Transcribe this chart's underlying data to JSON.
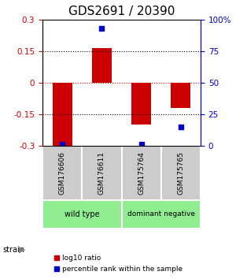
{
  "title": "GDS2691 / 20390",
  "samples": [
    "GSM176606",
    "GSM176611",
    "GSM175764",
    "GSM175765"
  ],
  "log10_ratio": [
    -0.3,
    0.165,
    -0.2,
    -0.12
  ],
  "percentile_rank": [
    1,
    93,
    1,
    15
  ],
  "groups": [
    {
      "name": "wild type",
      "samples": [
        0,
        1
      ],
      "color": "#90EE90"
    },
    {
      "name": "dominant negative",
      "samples": [
        2,
        3
      ],
      "color": "#90EE90"
    }
  ],
  "bar_color": "#cc0000",
  "dot_color": "#0000cc",
  "ylim_left": [
    -0.3,
    0.3
  ],
  "ylim_right": [
    0,
    100
  ],
  "yticks_left": [
    -0.3,
    -0.15,
    0,
    0.15,
    0.3
  ],
  "yticks_right": [
    0,
    25,
    50,
    75,
    100
  ],
  "hlines": [
    -0.15,
    0.15
  ],
  "hline_zero_color": "#cc0000",
  "background_color": "#ffffff",
  "title_fontsize": 11,
  "label_fontsize": 7.5
}
